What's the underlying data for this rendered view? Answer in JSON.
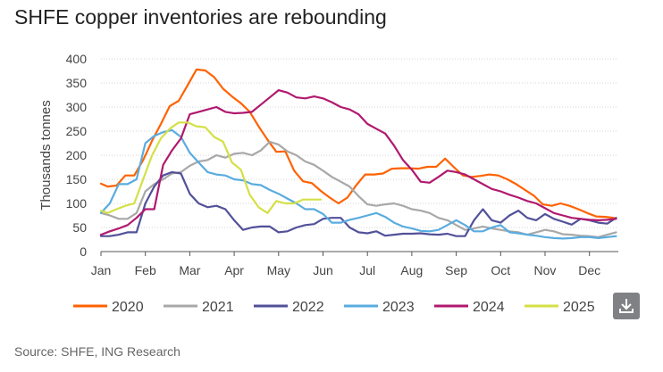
{
  "title": "SHFE copper inventories are rebounding",
  "source": "Source: SHFE, ING Research",
  "download_icon": "download-icon",
  "chart_data": {
    "type": "line",
    "title": "SHFE copper inventories are rebounding",
    "ylabel": "Thousands tonnes",
    "xlabel": "",
    "ylim": [
      0,
      400
    ],
    "yticks": [
      0,
      50,
      100,
      150,
      200,
      250,
      300,
      350,
      400
    ],
    "xlim": [
      0,
      11.65
    ],
    "month_labels": [
      "Jan",
      "Feb",
      "Mar",
      "Apr",
      "May",
      "Jun",
      "Jul",
      "Aug",
      "Sep",
      "Oct",
      "Nov",
      "Dec"
    ],
    "grid": "horizontal",
    "legend_position": "bottom",
    "series": [
      {
        "name": "2020",
        "color": "#ff6200",
        "x": [
          0,
          0.15,
          0.35,
          0.55,
          0.75,
          0.95,
          1.15,
          1.35,
          1.55,
          1.75,
          1.95,
          2.15,
          2.35,
          2.55,
          2.75,
          2.95,
          3.15,
          3.35,
          3.55,
          3.75,
          3.95,
          4.15,
          4.35,
          4.55,
          4.75,
          4.95,
          5.15,
          5.35,
          5.55,
          5.75,
          5.95,
          6.15,
          6.35,
          6.55,
          6.75,
          6.95,
          7.15,
          7.35,
          7.55,
          7.75,
          7.95,
          8.15,
          8.35,
          8.55,
          8.75,
          8.95,
          9.15,
          9.35,
          9.55,
          9.75,
          9.95,
          10.15,
          10.35,
          10.55,
          10.75,
          10.95,
          11.15,
          11.35,
          11.55
        ],
        "values": [
          141,
          135,
          137,
          158,
          158,
          190,
          230,
          265,
          302,
          313,
          345,
          378,
          376,
          362,
          338,
          322,
          308,
          290,
          260,
          232,
          207,
          208,
          168,
          146,
          142,
          126,
          112,
          100,
          112,
          138,
          160,
          160,
          162,
          172,
          173,
          173,
          172,
          176,
          176,
          193,
          175,
          158,
          155,
          157,
          160,
          158,
          150,
          140,
          128,
          116,
          98,
          95,
          100,
          95,
          88,
          80,
          73,
          72,
          70
        ]
      },
      {
        "name": "2021",
        "color": "#a8a8a8",
        "x": [
          0,
          0.2,
          0.4,
          0.6,
          0.8,
          1.0,
          1.2,
          1.4,
          1.6,
          1.8,
          2.0,
          2.2,
          2.4,
          2.6,
          2.8,
          3.0,
          3.2,
          3.4,
          3.6,
          3.8,
          4.0,
          4.2,
          4.4,
          4.6,
          4.8,
          5.0,
          5.2,
          5.4,
          5.6,
          5.8,
          6.0,
          6.2,
          6.4,
          6.6,
          6.8,
          7.0,
          7.2,
          7.4,
          7.6,
          7.8,
          8.0,
          8.2,
          8.4,
          8.6,
          8.8,
          9.0,
          9.2,
          9.4,
          9.6,
          9.8,
          10.0,
          10.2,
          10.4,
          10.6,
          10.8,
          11.0,
          11.2,
          11.4,
          11.6
        ],
        "values": [
          80,
          75,
          68,
          68,
          80,
          125,
          140,
          150,
          162,
          165,
          178,
          187,
          190,
          200,
          195,
          203,
          205,
          200,
          210,
          228,
          222,
          208,
          200,
          187,
          180,
          168,
          155,
          145,
          135,
          115,
          98,
          95,
          98,
          100,
          95,
          88,
          85,
          80,
          70,
          65,
          55,
          45,
          48,
          52,
          48,
          45,
          42,
          40,
          35,
          40,
          45,
          42,
          36,
          35,
          33,
          32,
          30,
          35,
          40
        ]
      },
      {
        "name": "2022",
        "color": "#525199",
        "x": [
          0,
          0.2,
          0.4,
          0.6,
          0.8,
          1.0,
          1.2,
          1.4,
          1.6,
          1.8,
          2.0,
          2.2,
          2.4,
          2.6,
          2.8,
          3.0,
          3.2,
          3.4,
          3.6,
          3.8,
          4.0,
          4.2,
          4.4,
          4.6,
          4.8,
          5.0,
          5.2,
          5.4,
          5.6,
          5.8,
          6.0,
          6.2,
          6.4,
          6.6,
          6.8,
          7.0,
          7.2,
          7.4,
          7.6,
          7.8,
          8.0,
          8.2,
          8.4,
          8.6,
          8.8,
          9.0,
          9.2,
          9.4,
          9.6,
          9.8,
          10.0,
          10.2,
          10.4,
          10.6,
          10.8,
          11.0,
          11.2,
          11.4,
          11.6
        ],
        "values": [
          32,
          32,
          35,
          40,
          40,
          100,
          135,
          158,
          165,
          162,
          120,
          100,
          92,
          95,
          88,
          65,
          45,
          50,
          52,
          52,
          40,
          42,
          50,
          55,
          57,
          68,
          70,
          70,
          50,
          40,
          38,
          42,
          33,
          35,
          37,
          37,
          38,
          36,
          35,
          37,
          32,
          32,
          65,
          88,
          65,
          60,
          75,
          85,
          70,
          65,
          78,
          68,
          62,
          56,
          68,
          65,
          60,
          58,
          70
        ]
      },
      {
        "name": "2023",
        "color": "#5aacdf",
        "x": [
          0,
          0.2,
          0.4,
          0.6,
          0.8,
          1.0,
          1.2,
          1.4,
          1.6,
          1.8,
          2.0,
          2.2,
          2.4,
          2.6,
          2.8,
          3.0,
          3.2,
          3.4,
          3.6,
          3.8,
          4.0,
          4.2,
          4.4,
          4.6,
          4.8,
          5.0,
          5.2,
          5.4,
          5.6,
          5.8,
          6.0,
          6.2,
          6.4,
          6.6,
          6.8,
          7.0,
          7.2,
          7.4,
          7.6,
          7.8,
          8.0,
          8.2,
          8.4,
          8.6,
          8.8,
          9.0,
          9.2,
          9.4,
          9.6,
          9.8,
          10.0,
          10.2,
          10.4,
          10.6,
          10.8,
          11.0,
          11.2,
          11.4,
          11.6
        ],
        "values": [
          80,
          100,
          140,
          140,
          150,
          225,
          240,
          248,
          252,
          238,
          205,
          185,
          165,
          160,
          158,
          150,
          148,
          140,
          138,
          128,
          120,
          110,
          100,
          88,
          88,
          78,
          60,
          60,
          66,
          70,
          75,
          80,
          72,
          60,
          52,
          48,
          43,
          42,
          45,
          55,
          65,
          55,
          42,
          42,
          50,
          55,
          40,
          38,
          35,
          33,
          30,
          28,
          27,
          28,
          30,
          30,
          28,
          30,
          32
        ]
      },
      {
        "name": "2024",
        "color": "#b0196f",
        "x": [
          0,
          0.2,
          0.4,
          0.6,
          0.8,
          1.0,
          1.2,
          1.4,
          1.6,
          1.8,
          2.0,
          2.2,
          2.4,
          2.6,
          2.8,
          3.0,
          3.2,
          3.4,
          3.6,
          3.8,
          4.0,
          4.2,
          4.4,
          4.6,
          4.8,
          5.0,
          5.2,
          5.4,
          5.6,
          5.8,
          6.0,
          6.2,
          6.4,
          6.6,
          6.8,
          7.0,
          7.2,
          7.4,
          7.6,
          7.8,
          8.0,
          8.2,
          8.4,
          8.6,
          8.8,
          9.0,
          9.2,
          9.4,
          9.6,
          9.8,
          10.0,
          10.2,
          10.4,
          10.6,
          10.8,
          11.0,
          11.2,
          11.4,
          11.6
        ],
        "values": [
          35,
          42,
          48,
          55,
          70,
          88,
          88,
          180,
          210,
          235,
          285,
          290,
          295,
          300,
          290,
          287,
          288,
          290,
          305,
          320,
          335,
          330,
          320,
          318,
          322,
          318,
          310,
          300,
          295,
          285,
          265,
          255,
          245,
          220,
          190,
          170,
          145,
          143,
          155,
          168,
          165,
          160,
          150,
          140,
          130,
          125,
          118,
          112,
          105,
          100,
          90,
          80,
          75,
          70,
          68,
          66,
          65,
          66,
          68
        ]
      },
      {
        "name": "2025",
        "color": "#d4e046",
        "x": [
          0,
          0.15,
          0.35,
          0.55,
          0.75,
          0.95,
          1.15,
          1.35,
          1.55,
          1.75,
          1.95,
          2.15,
          2.35,
          2.55,
          2.75,
          2.95,
          3.15,
          3.35,
          3.55,
          3.75,
          3.95,
          4.15,
          4.35,
          4.55,
          4.75,
          4.95
        ],
        "values": [
          85,
          80,
          88,
          95,
          100,
          150,
          200,
          235,
          255,
          268,
          268,
          260,
          258,
          238,
          228,
          185,
          170,
          118,
          92,
          80,
          105,
          100,
          100,
          108,
          108,
          108
        ]
      }
    ]
  }
}
